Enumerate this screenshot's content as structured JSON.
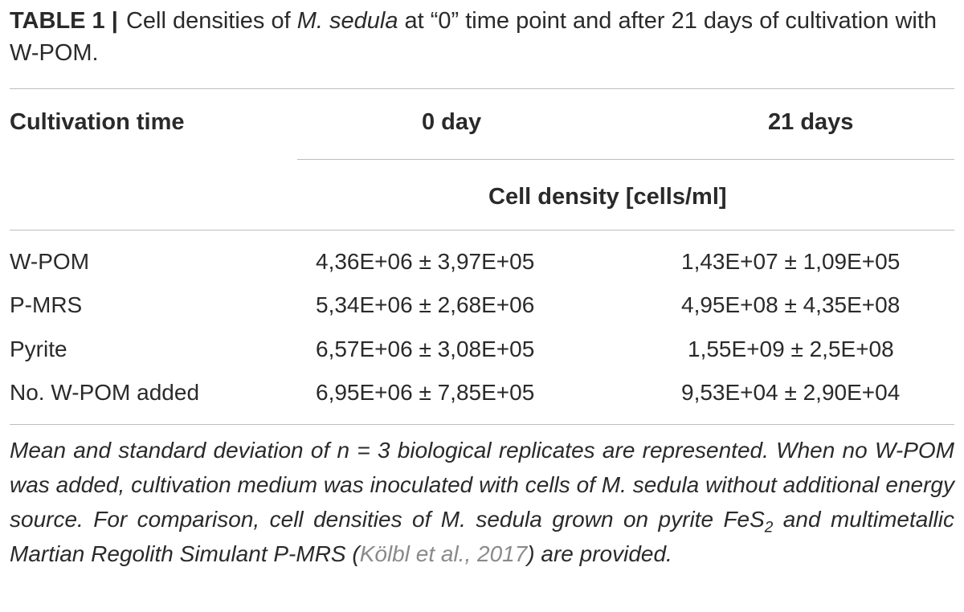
{
  "caption": {
    "label": "TABLE 1",
    "separator": "|",
    "text_1": " Cell densities of ",
    "species": "M. sedula",
    "text_2": " at “0” time point and after 21 days of cultivation with W-POM."
  },
  "table": {
    "header": {
      "col0": "Cultivation time",
      "col1": "0 day",
      "col2": "21 days"
    },
    "subheader": "Cell density [cells/ml]",
    "rows": [
      {
        "label": "W-POM",
        "day0": "4,36E+06 ± 3,97E+05",
        "day21": "1,43E+07 ± 1,09E+05"
      },
      {
        "label": "P-MRS",
        "day0": "5,34E+06 ± 2,68E+06",
        "day21": "4,95E+08 ± 4,35E+08"
      },
      {
        "label": "Pyrite",
        "day0": "6,57E+06 ± 3,08E+05",
        "day21": "1,55E+09 ± 2,5E+08"
      },
      {
        "label": "No. W-POM added",
        "day0": "6,95E+06 ± 7,85E+05",
        "day21": "9,53E+04 ± 2,90E+04"
      }
    ]
  },
  "footnote": {
    "part_1": "Mean and standard deviation of n = 3 biological replicates are represented. When no W-POM was added, cultivation medium was inoculated with cells of M. sedula without additional energy source. For comparison, cell densities of M. sedula grown on pyrite FeS",
    "subscript": "2",
    "part_2": " and multimetallic Martian Regolith Simulant P-MRS (",
    "citation": "Kölbl et al., 2017",
    "part_3": ") are provided."
  }
}
